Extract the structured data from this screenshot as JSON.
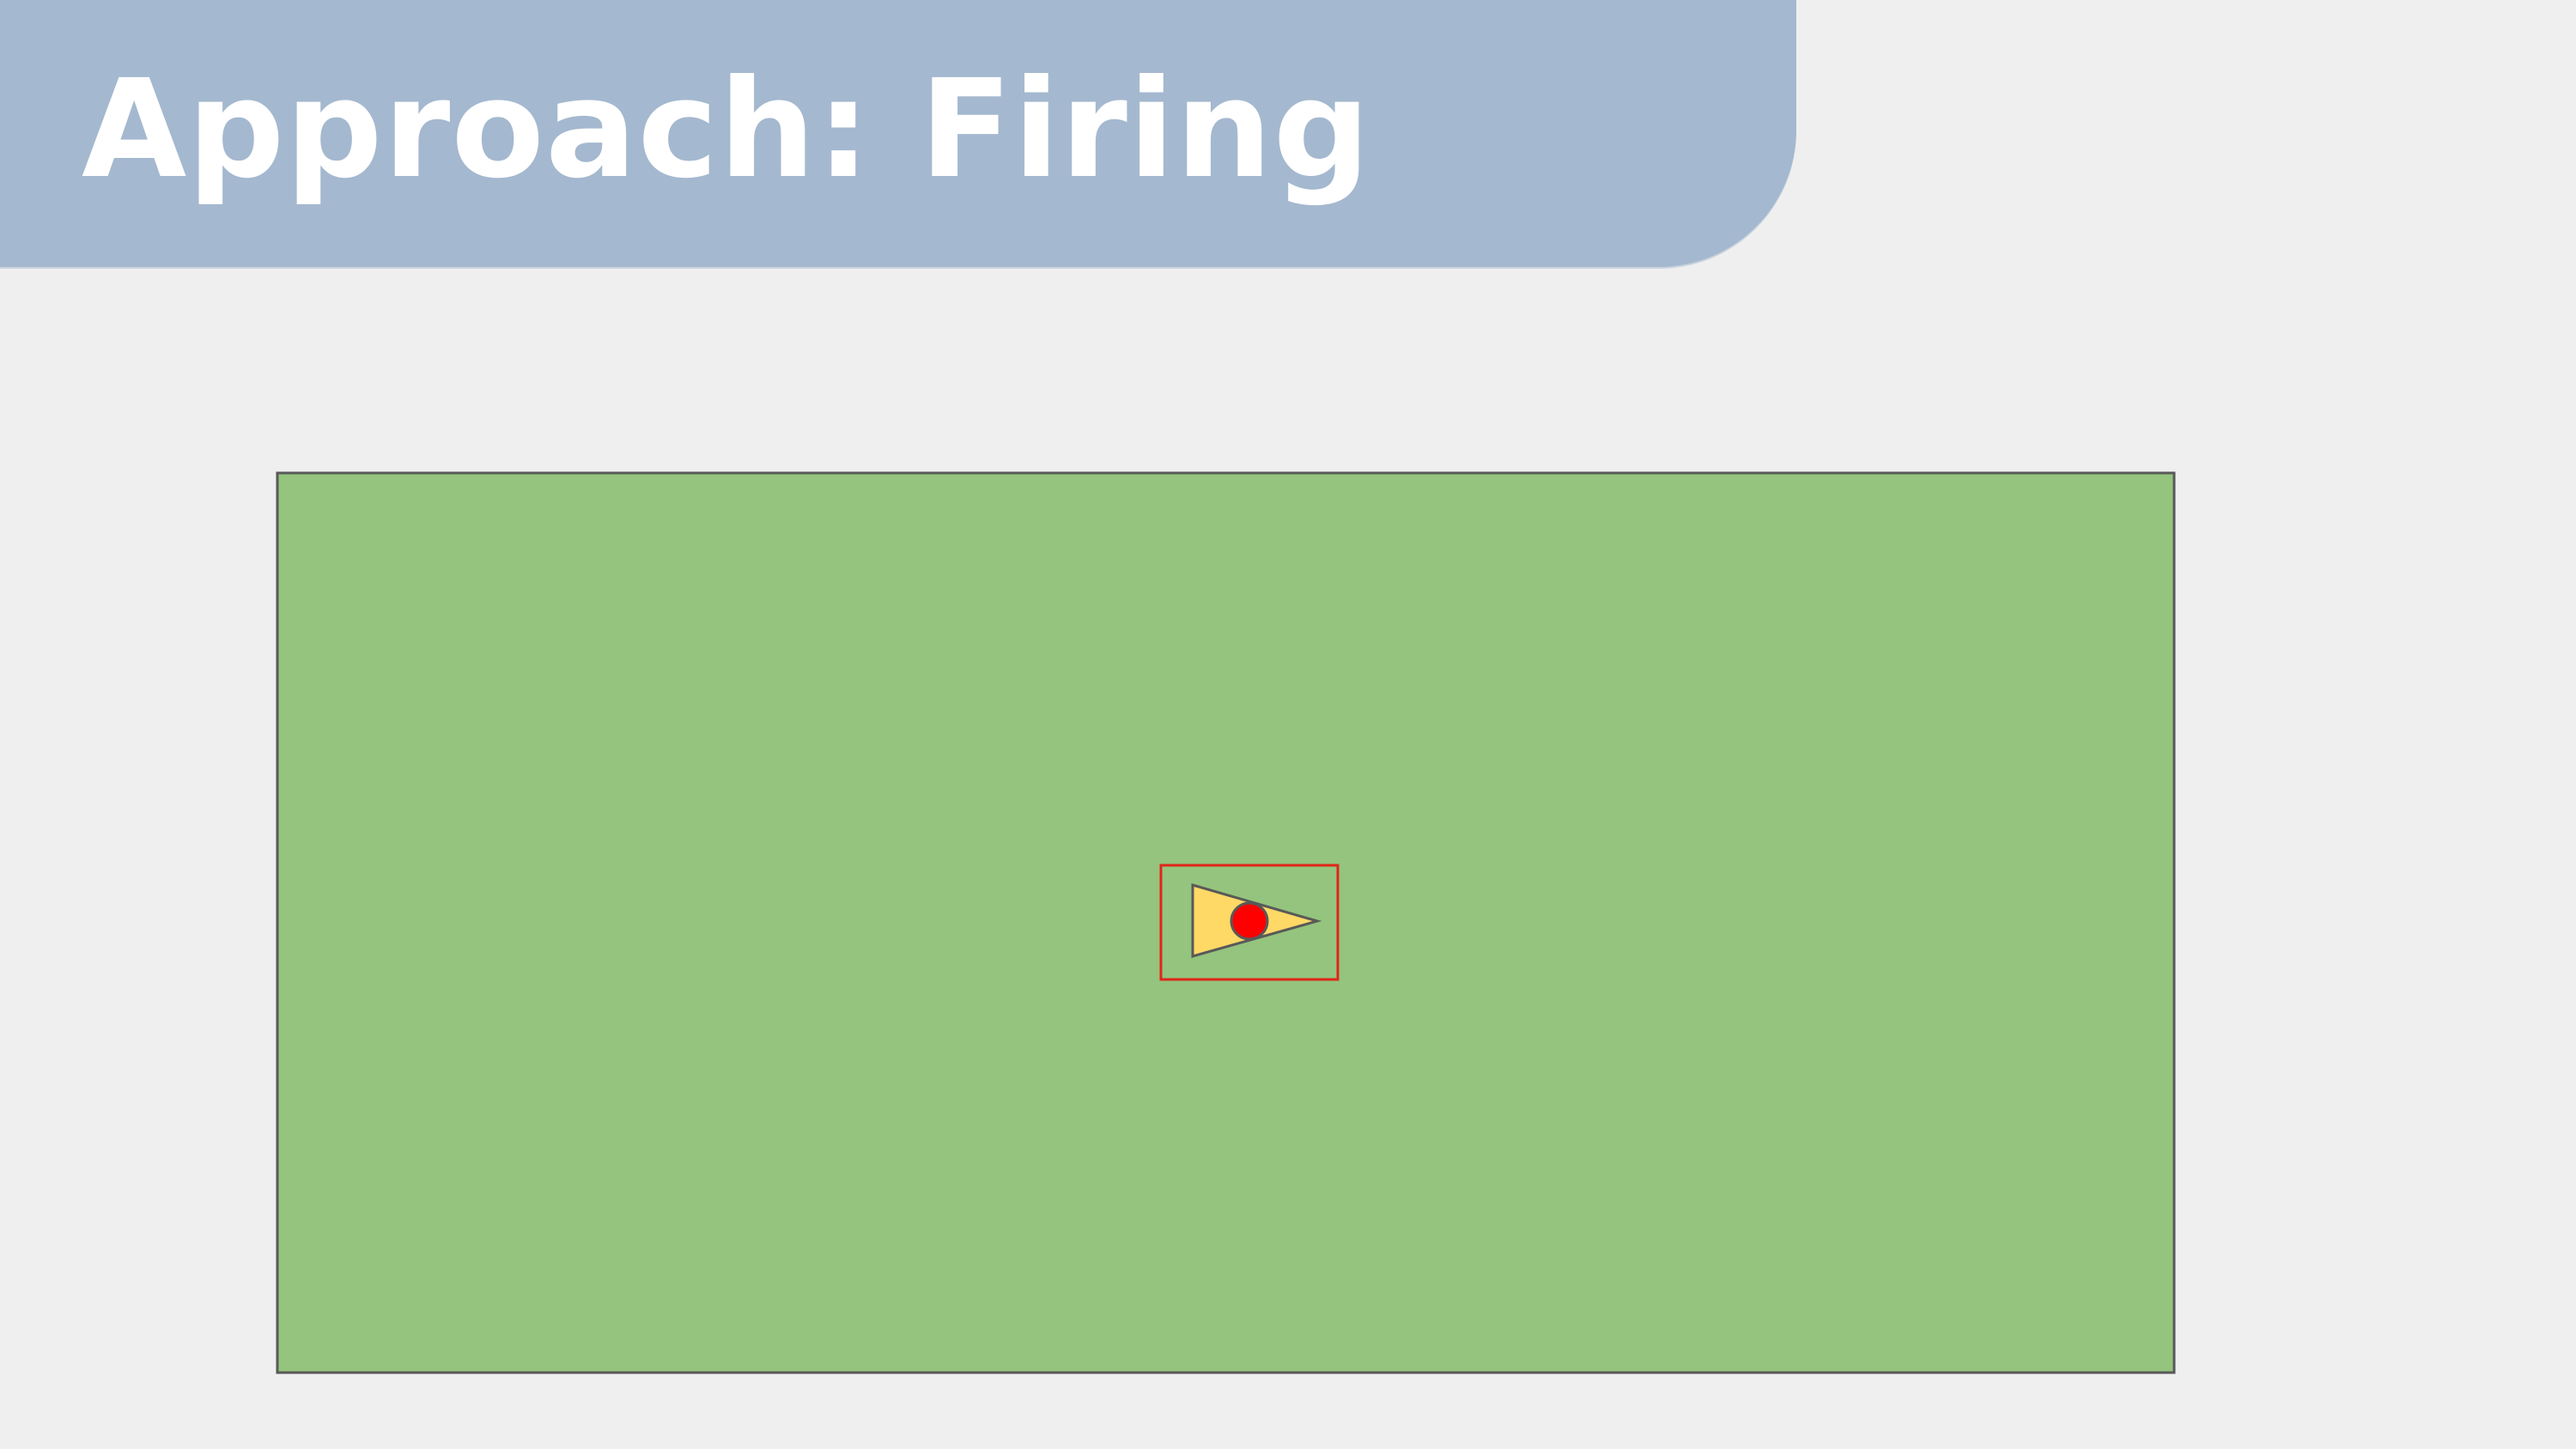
{
  "slide": {
    "title": "Approach: Firing"
  },
  "diagram": {
    "field_color": "#94c47d",
    "field_border_color": "#595959",
    "selection_box_color": "#e0261a",
    "ship_fill_color": "#ffd966",
    "ship_outline_color": "#595959",
    "projectile_color": "#ff0000",
    "banner_color": "#a4b8cf",
    "background_color": "#efefef"
  }
}
